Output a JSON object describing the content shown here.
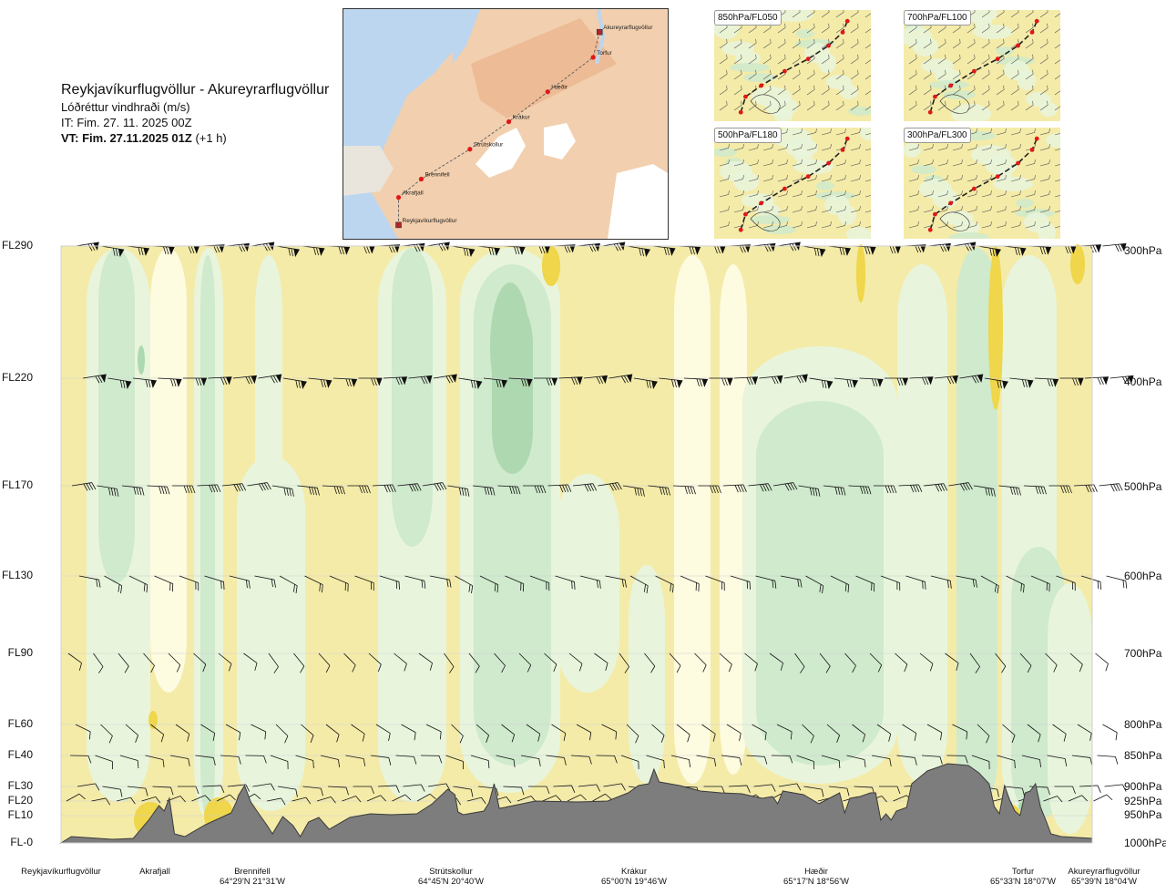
{
  "header": {
    "title": "Reykjavíkurflugvöllur - Akureyrarflugvöllur",
    "parameter": "Lóðréttur vindhraði (m/s)",
    "initial_time": "IT: Fim. 27. 11. 2025 00Z",
    "valid_prefix": "VT: Fim. 27.11.2025 01Z",
    "valid_suffix": "(+1 h)"
  },
  "map": {
    "points": [
      {
        "label": "Akureyrarflugvöllur",
        "x": 0.79,
        "y": 0.1
      },
      {
        "label": "Torfur",
        "x": 0.77,
        "y": 0.21
      },
      {
        "label": "Hæðir",
        "x": 0.63,
        "y": 0.36
      },
      {
        "label": "Krákur",
        "x": 0.51,
        "y": 0.49
      },
      {
        "label": "Strútskollur",
        "x": 0.39,
        "y": 0.61
      },
      {
        "label": "Brennifell",
        "x": 0.24,
        "y": 0.74
      },
      {
        "label": "Akrafjall",
        "x": 0.17,
        "y": 0.82
      },
      {
        "label": "Reykjavíkurflugvöllur",
        "x": 0.17,
        "y": 0.94
      }
    ]
  },
  "panels": [
    {
      "label": "850hPa/FL050"
    },
    {
      "label": "700hPa/FL100"
    },
    {
      "label": "500hPa/FL180"
    },
    {
      "label": "300hPa/FL300"
    }
  ],
  "colors": {
    "yellow": "#f4eba8",
    "pale": "#fdfbe0",
    "palegreen": "#e8f5dc",
    "green": "#cfeacd",
    "midgreen": "#aed8b0",
    "darkgreen": "#8fc49a",
    "gold": "#efd64a",
    "terrain": "#7d7d7d"
  },
  "chart_data": {
    "type": "cross-section",
    "title": "Reykjavíkurflugvöllur - Akureyrarflugvöllur",
    "quantity": "Lóðréttur vindhraði (m/s)",
    "flight_levels": [
      {
        "fl": "FL290",
        "hpa": "300hPa"
      },
      {
        "fl": "FL220",
        "hpa": "400hPa"
      },
      {
        "fl": "FL170",
        "hpa": "500hPa"
      },
      {
        "fl": "FL130",
        "hpa": "600hPa"
      },
      {
        "fl": "FL90",
        "hpa": "700hPa"
      },
      {
        "fl": "FL60",
        "hpa": "800hPa"
      },
      {
        "fl": "FL40",
        "hpa": "850hPa"
      },
      {
        "fl": "FL30",
        "hpa": "900hPa"
      },
      {
        "fl": "FL20",
        "hpa": "925hPa"
      },
      {
        "fl": "FL10",
        "hpa": "950hPa"
      },
      {
        "fl": "FL-0",
        "hpa": "1000hPa"
      }
    ],
    "locations": [
      {
        "name": "Reykjavíkurflugvöllur",
        "coord": "",
        "pos": 0.0
      },
      {
        "name": "Akrafjall",
        "coord": "",
        "pos": 0.09
      },
      {
        "name": "Brennifell",
        "coord": "64°29'N 21°31'W",
        "pos": 0.186
      },
      {
        "name": "Strútskollur",
        "coord": "64°45'N 20°40'W",
        "pos": 0.378
      },
      {
        "name": "Krákur",
        "coord": "65°00'N 19°46'W",
        "pos": 0.571
      },
      {
        "name": "Hæðir",
        "coord": "65°17'N 18°56'W",
        "pos": 0.752
      },
      {
        "name": "Torfur",
        "coord": "65°33'N 18°07'W",
        "pos": 0.946
      },
      {
        "name": "Akureyrarflugvöllur",
        "coord": "65°39'N 18°04'W",
        "pos": 1.0
      }
    ]
  }
}
